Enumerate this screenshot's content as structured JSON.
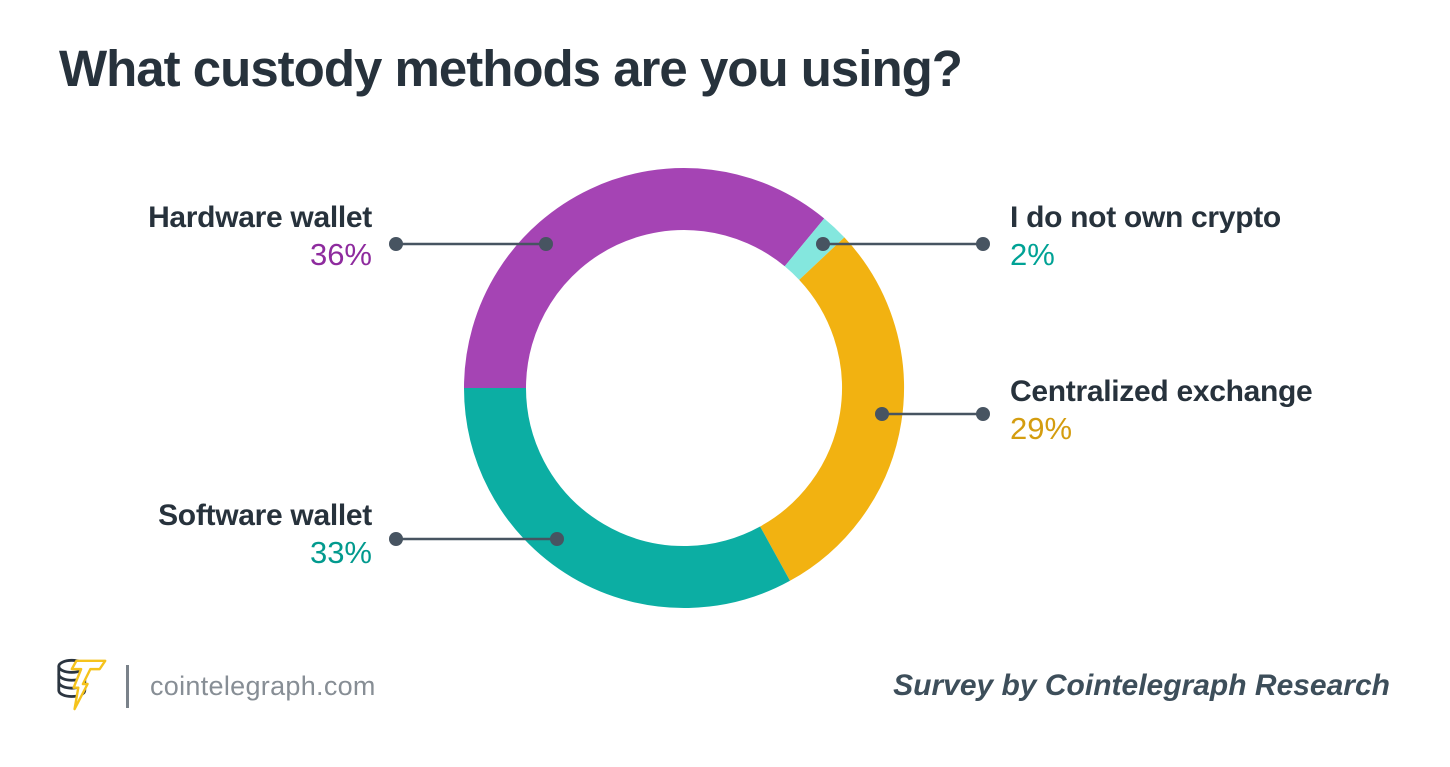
{
  "title": "What custody methods are you using?",
  "chart_data": {
    "type": "pie",
    "variant": "donut",
    "title": "What custody methods are you using?",
    "start_angle_deg": 180,
    "direction": "clockwise",
    "legend_position": "callout-labels",
    "segments": [
      {
        "label": "Hardware wallet",
        "value_pct": 36,
        "display_value": "36%",
        "color": "#a544b4",
        "value_text_color": "#8e2b9e",
        "callout_side": "left"
      },
      {
        "label": "I do not own crypto",
        "value_pct": 2,
        "display_value": "2%",
        "color": "#84e7de",
        "value_text_color": "#00a295",
        "callout_side": "right"
      },
      {
        "label": "Centralized exchange",
        "value_pct": 29,
        "display_value": "29%",
        "color": "#f2b211",
        "value_text_color": "#d49d10",
        "callout_side": "right"
      },
      {
        "label": "Software wallet",
        "value_pct": 33,
        "display_value": "33%",
        "color": "#0caea3",
        "value_text_color": "#029a8e",
        "callout_side": "left"
      }
    ]
  },
  "footer": {
    "logo_icon": "cointelegraph-coin-bolt-logo",
    "site": "cointelegraph.com",
    "credit": "Survey by Cointelegraph Research"
  },
  "colors": {
    "background": "#ffffff",
    "title_text": "#27323c",
    "label_text": "#27323c",
    "leader_line": "#475461",
    "footer_site_text": "#878e95",
    "footer_divider": "#7a828a",
    "footer_credit_text": "#3d4e5a",
    "logo_coin_outline": "#2b3540",
    "logo_bolt": "#f5c31c"
  }
}
